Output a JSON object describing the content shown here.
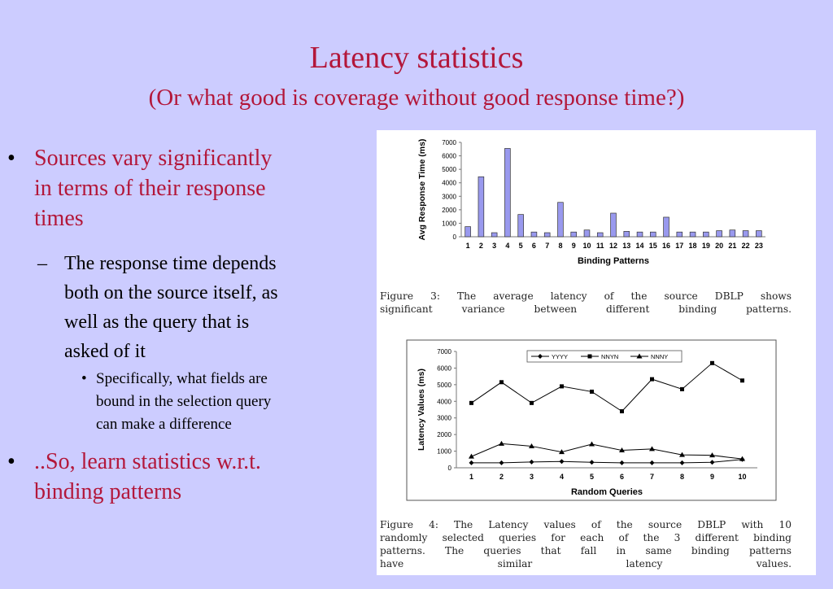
{
  "slide": {
    "title": "Latency statistics",
    "subtitle": "(Or what good is coverage without good response time?)",
    "bullets": [
      {
        "marker": "•",
        "lines": [
          "Sources vary significantly",
          "in terms of their response",
          "times"
        ]
      },
      {
        "marker": "–",
        "lines": [
          "The response time depends",
          "both on the source itself, as",
          "well as the query that is",
          "asked of it"
        ]
      },
      {
        "marker": "•",
        "lines": [
          "Specifically, what fields are",
          "bound in the selection query",
          "can make a difference"
        ]
      },
      {
        "marker": "•",
        "lines": [
          "..So, learn statistics w.r.t.",
          "binding patterns"
        ]
      }
    ]
  },
  "figure3": {
    "caption_lines": [
      "Figure 3:  The average latency of the source DBLP shows",
      "significant variance between different binding patterns."
    ]
  },
  "figure4": {
    "caption_lines": [
      "Figure 4:  The Latency values of the source DBLP with 10",
      "randomly selected queries for each of the 3 different binding",
      "patterns.   The queries that fall in same binding patterns",
      "have similar latency values."
    ]
  },
  "chart_data": [
    {
      "type": "bar",
      "title": "",
      "xlabel": "Binding Patterns",
      "ylabel": "Avg Response Time (ms)",
      "ylim": [
        0,
        7000
      ],
      "yticks": [
        0,
        1000,
        2000,
        3000,
        4000,
        5000,
        6000,
        7000
      ],
      "grid": false,
      "bar_color": "#9999ee",
      "categories": [
        "1",
        "2",
        "3",
        "4",
        "5",
        "6",
        "7",
        "8",
        "9",
        "10",
        "11",
        "12",
        "13",
        "14",
        "15",
        "16",
        "17",
        "18",
        "19",
        "20",
        "21",
        "22",
        "23"
      ],
      "values": [
        750,
        4450,
        300,
        6550,
        1650,
        350,
        300,
        2550,
        350,
        500,
        300,
        1750,
        400,
        350,
        350,
        1450,
        350,
        350,
        350,
        450,
        500,
        450,
        450
      ]
    },
    {
      "type": "line",
      "title": "",
      "xlabel": "Random Queries",
      "ylabel": "Latency Values (ms)",
      "ylim": [
        0,
        7000
      ],
      "yticks": [
        0,
        1000,
        2000,
        3000,
        4000,
        5000,
        6000,
        7000
      ],
      "grid": false,
      "legend_position": "top",
      "x": [
        1,
        2,
        3,
        4,
        5,
        6,
        7,
        8,
        9,
        10
      ],
      "series": [
        {
          "name": "YYYY",
          "marker": "diamond",
          "values": [
            300,
            300,
            350,
            380,
            330,
            300,
            300,
            300,
            330,
            500
          ]
        },
        {
          "name": "NNYN",
          "marker": "square",
          "values": [
            3900,
            5150,
            3900,
            4900,
            4580,
            3400,
            5330,
            4730,
            6300,
            5250
          ]
        },
        {
          "name": "NNNY",
          "marker": "triangle",
          "values": [
            680,
            1450,
            1300,
            950,
            1420,
            1050,
            1130,
            780,
            750,
            530
          ]
        }
      ]
    }
  ]
}
